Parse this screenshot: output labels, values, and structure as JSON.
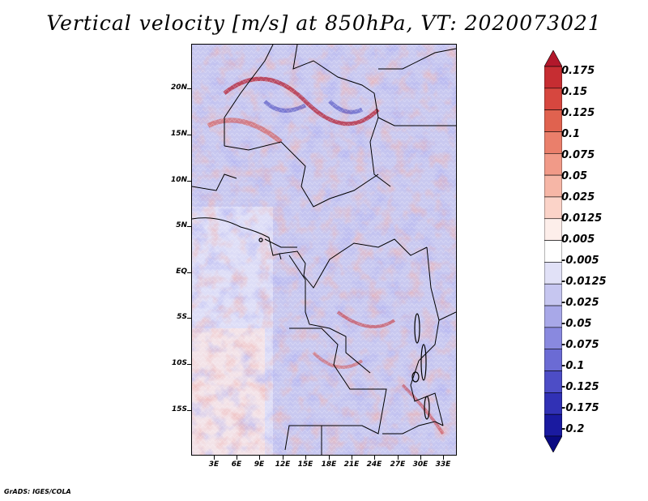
{
  "title": "Vertical velocity [m/s] at 850hPa, VT: 2020073021",
  "latitude_labels": [
    "20N",
    "15N",
    "10N",
    "5N",
    "EQ",
    "5S",
    "10S",
    "15S"
  ],
  "longitude_labels": [
    "3E",
    "6E",
    "9E",
    "12E",
    "15E",
    "18E",
    "21E",
    "24E",
    "27E",
    "30E",
    "33E"
  ],
  "colorbar": {
    "labels": [
      "0.175",
      "0.15",
      "0.125",
      "0.1",
      "0.075",
      "0.05",
      "0.025",
      "0.0125",
      "0.005",
      "-0.005",
      "-0.0125",
      "-0.025",
      "-0.05",
      "-0.075",
      "-0.1",
      "-0.125",
      "-0.175",
      "-0.2"
    ],
    "colors": [
      "#b2182b",
      "#c62d32",
      "#d6473f",
      "#e0624f",
      "#ea7f6b",
      "#f19a88",
      "#f6b6a6",
      "#fbd3c8",
      "#fdeeea",
      "#ffffff",
      "#e1e1f7",
      "#c6c6f0",
      "#a8a8e8",
      "#8989df",
      "#6b6bd4",
      "#4d4dc6",
      "#3131b5",
      "#1a1aa0",
      "#0a0a82"
    ]
  },
  "footer": "GrADS: IGES/COLA"
}
